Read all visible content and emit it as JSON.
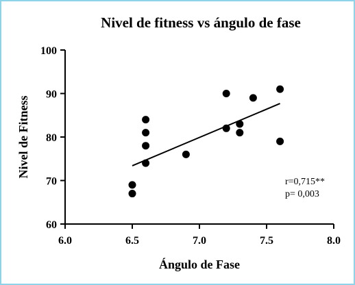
{
  "chart_data": {
    "type": "scatter",
    "title": "Nivel de fitness vs ángulo de fase",
    "xlabel": "Ángulo de Fase",
    "ylabel": "Nivel de Fitness",
    "xlim": [
      6.0,
      8.0
    ],
    "ylim": [
      60,
      100
    ],
    "xticks": [
      6.0,
      6.5,
      7.0,
      7.5,
      8.0
    ],
    "xtick_labels": [
      "6.0",
      "6.5",
      "7.0",
      "7.5",
      "8.0"
    ],
    "yticks": [
      60,
      70,
      80,
      90,
      100
    ],
    "ytick_labels": [
      "60",
      "70",
      "80",
      "90",
      "100"
    ],
    "grid": false,
    "points": [
      {
        "x": 6.5,
        "y": 69
      },
      {
        "x": 6.5,
        "y": 67
      },
      {
        "x": 6.6,
        "y": 84
      },
      {
        "x": 6.6,
        "y": 81
      },
      {
        "x": 6.6,
        "y": 78
      },
      {
        "x": 6.6,
        "y": 74
      },
      {
        "x": 6.9,
        "y": 76
      },
      {
        "x": 7.2,
        "y": 90
      },
      {
        "x": 7.2,
        "y": 82
      },
      {
        "x": 7.3,
        "y": 83
      },
      {
        "x": 7.3,
        "y": 81
      },
      {
        "x": 7.4,
        "y": 89
      },
      {
        "x": 7.6,
        "y": 91
      },
      {
        "x": 7.6,
        "y": 79
      }
    ],
    "trendline": {
      "x": [
        6.5,
        7.6
      ],
      "y": [
        73.4,
        87.7
      ]
    },
    "annotations": [
      "r=0,715**",
      "p= 0,003"
    ],
    "marker_color": "#000000",
    "line_color": "#000000",
    "border_color": "#8fd3e8"
  }
}
